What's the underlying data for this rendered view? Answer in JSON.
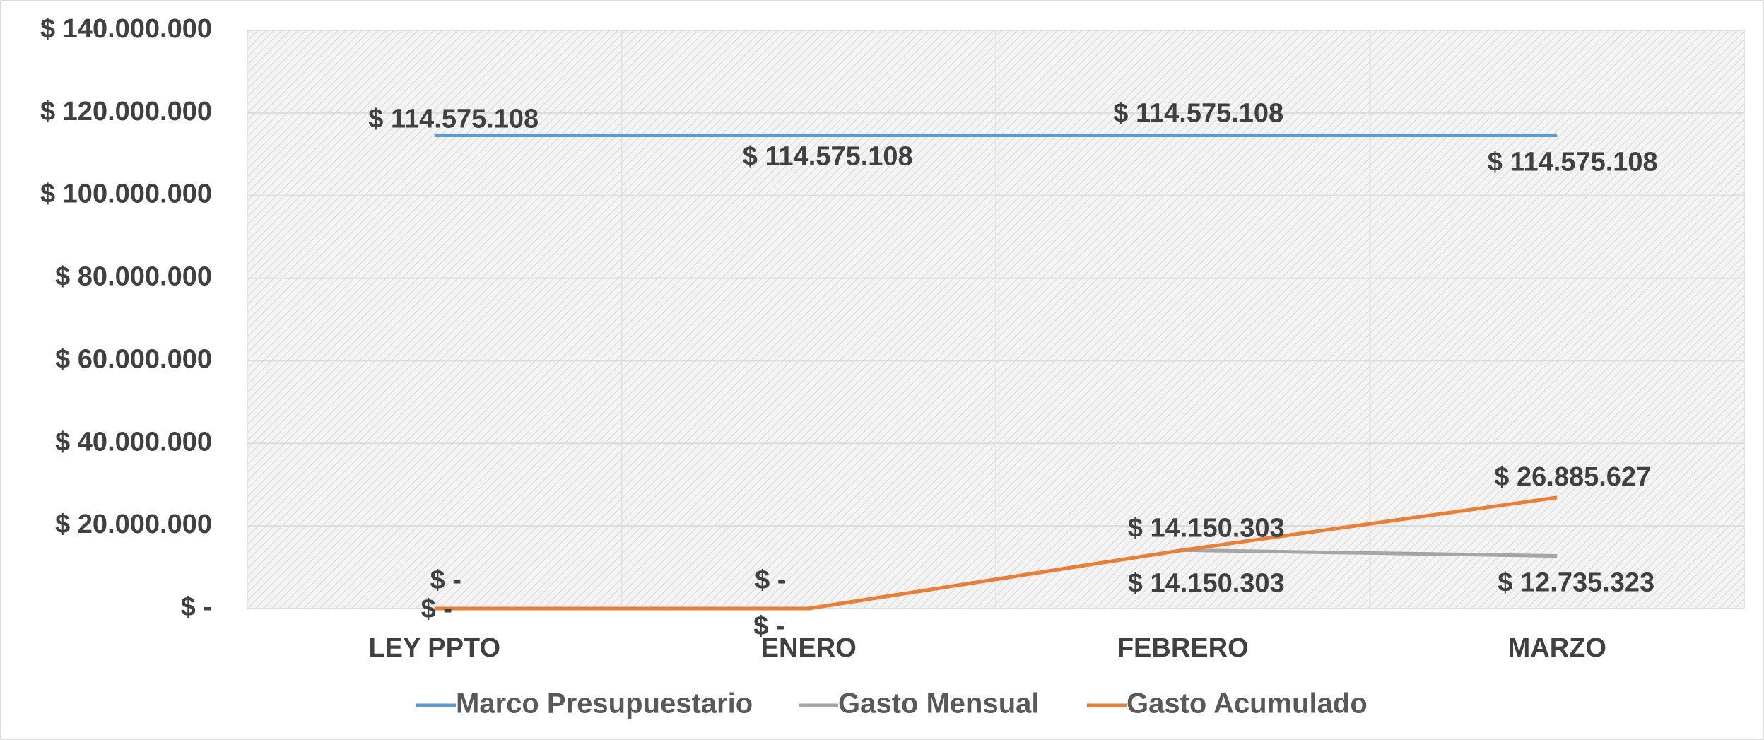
{
  "chart_data": {
    "type": "line",
    "categories": [
      "LEY PPTO",
      "ENERO",
      "FEBRERO",
      "MARZO"
    ],
    "series": [
      {
        "name": "Marco Presupuestario",
        "color": "#5b9bd5",
        "values": [
          114575108,
          114575108,
          114575108,
          114575108
        ],
        "value_labels": [
          "$ 114.575.108",
          "$ 114.575.108",
          "$ 114.575.108",
          "$ 114.575.108"
        ]
      },
      {
        "name": "Gasto Mensual",
        "color": "#a5a5a5",
        "values": [
          0,
          0,
          14150303,
          12735323
        ],
        "value_labels": [
          "$ -",
          "$ -",
          "$ 14.150.303",
          "$ 12.735.323"
        ]
      },
      {
        "name": "Gasto Acumulado",
        "color": "#ed7d31",
        "values": [
          0,
          0,
          14150303,
          26885627
        ],
        "value_labels": [
          "$ -",
          "$ -",
          "$ 14.150.303",
          "$ 26.885.627"
        ]
      }
    ],
    "ylim": [
      0,
      140000000
    ],
    "yticks": [
      {
        "value": 0,
        "label": "$ -"
      },
      {
        "value": 20000000,
        "label": "$ 20.000.000"
      },
      {
        "value": 40000000,
        "label": "$ 40.000.000"
      },
      {
        "value": 60000000,
        "label": "$ 60.000.000"
      },
      {
        "value": 80000000,
        "label": "$ 80.000.000"
      },
      {
        "value": 100000000,
        "label": "$ 100.000.000"
      },
      {
        "value": 120000000,
        "label": "$ 120.000.000"
      },
      {
        "value": 140000000,
        "label": "$ 140.000.000"
      }
    ],
    "grid": true,
    "legend": "bottom"
  }
}
